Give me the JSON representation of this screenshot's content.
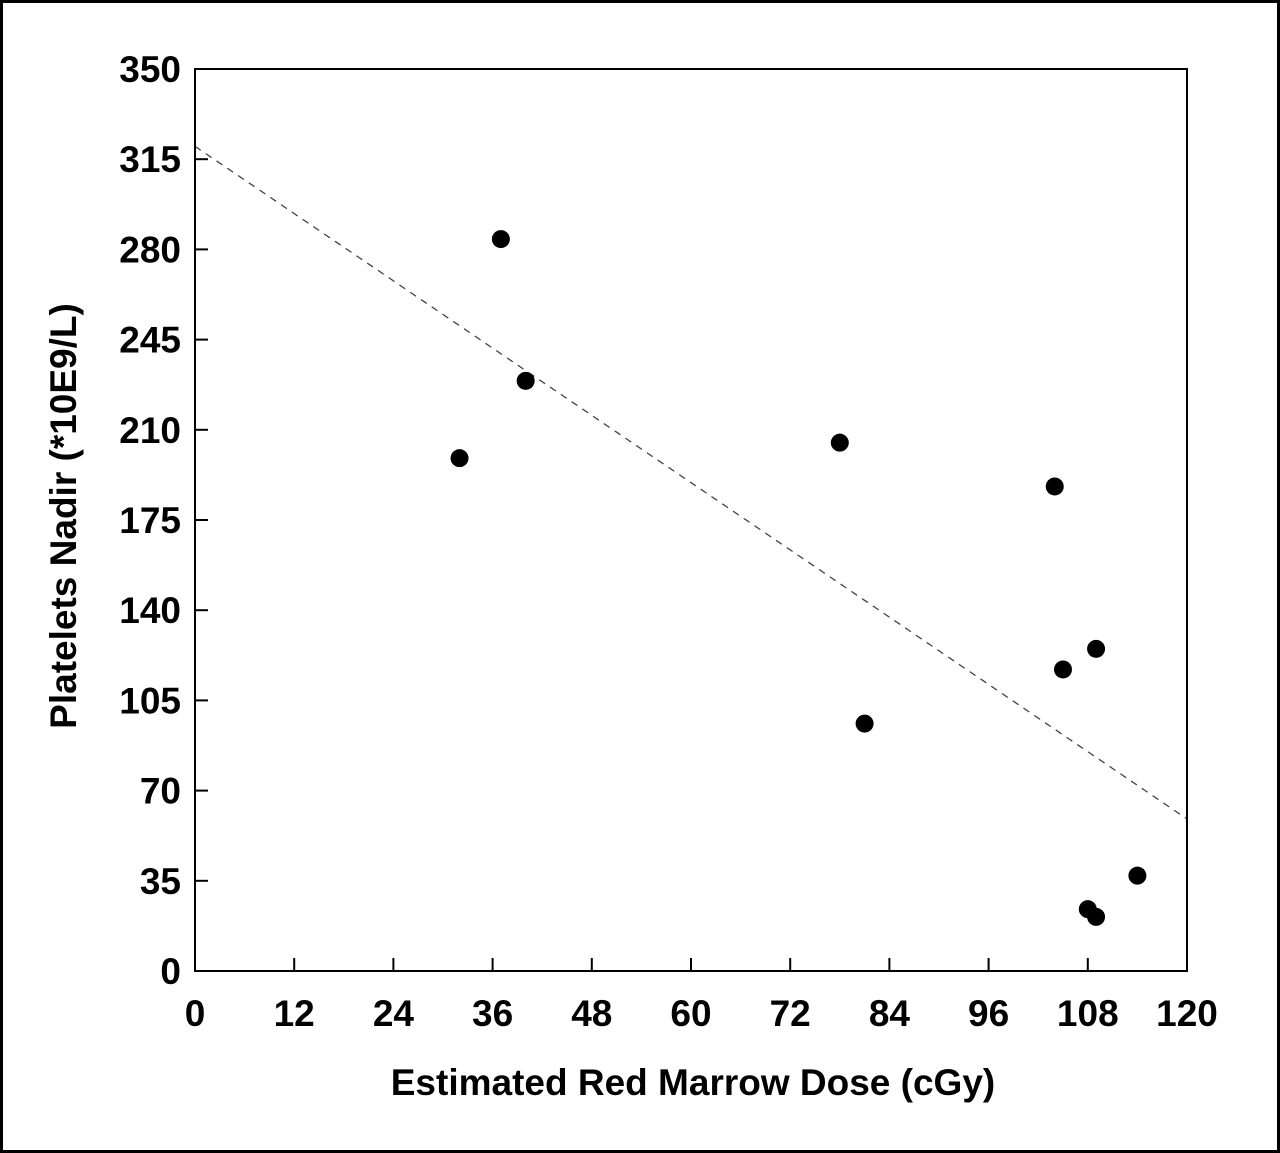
{
  "chart_data": {
    "type": "scatter",
    "title": "",
    "xlabel": "Estimated Red Marrow Dose (cGy)",
    "ylabel": "Platelets Nadir (*10E9/L)",
    "xlim": [
      0,
      120
    ],
    "ylim": [
      0,
      350
    ],
    "xticks": [
      0,
      12,
      24,
      36,
      48,
      60,
      72,
      84,
      96,
      108,
      120
    ],
    "yticks": [
      0,
      35,
      70,
      105,
      140,
      175,
      210,
      245,
      280,
      315,
      350
    ],
    "grid": false,
    "legend": "none",
    "series": [
      {
        "points": [
          {
            "x": 32,
            "y": 199
          },
          {
            "x": 37,
            "y": 284
          },
          {
            "x": 40,
            "y": 229
          },
          {
            "x": 78,
            "y": 205
          },
          {
            "x": 81,
            "y": 96
          },
          {
            "x": 104,
            "y": 188
          },
          {
            "x": 105,
            "y": 117
          },
          {
            "x": 109,
            "y": 125
          },
          {
            "x": 108,
            "y": 24
          },
          {
            "x": 109,
            "y": 21
          },
          {
            "x": 114,
            "y": 37
          }
        ]
      }
    ],
    "trendline": {
      "style": "dashed",
      "x": [
        0,
        120
      ],
      "y": [
        320,
        59
      ]
    },
    "colors": {
      "marker": "#000000",
      "axis": "#000000",
      "trendline": "#444444"
    }
  }
}
